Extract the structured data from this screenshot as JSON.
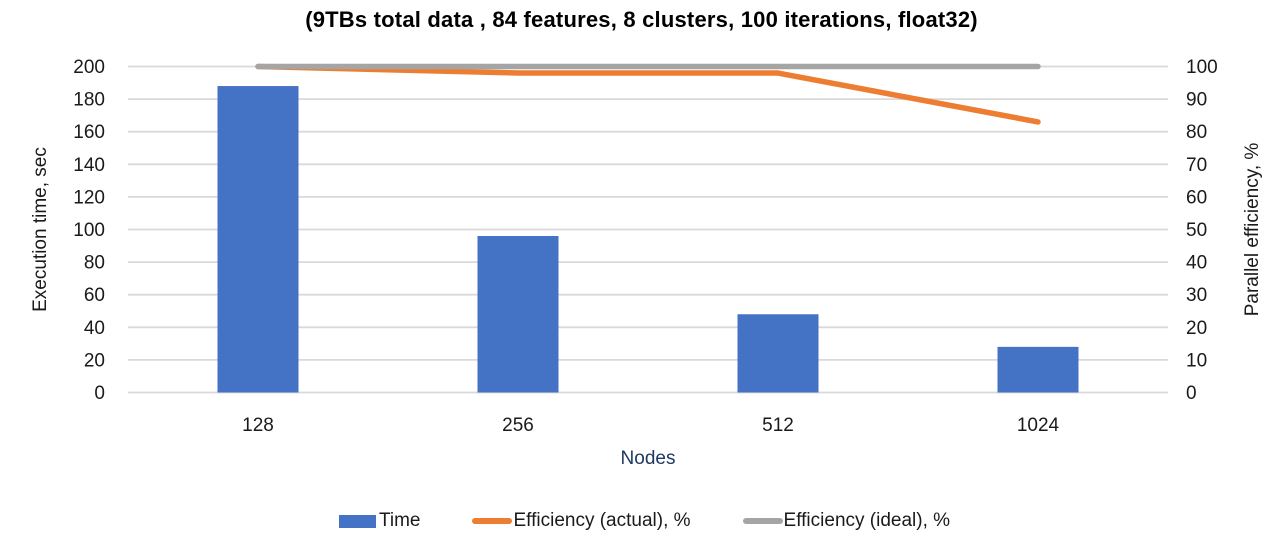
{
  "chart_data": {
    "type": "bar",
    "title": "(9TBs total data , 84 features, 8 clusters, 100 iterations, float32)",
    "categories": [
      "128",
      "256",
      "512",
      "1024"
    ],
    "xlabel": "Nodes",
    "axes": {
      "left": {
        "label": "Execution time, sec",
        "min": 0,
        "max": 200,
        "step": 20
      },
      "right": {
        "label": "Parallel efficiency, %",
        "min": 0,
        "max": 100,
        "step": 10
      }
    },
    "series": [
      {
        "name": "Time",
        "kind": "bar",
        "axis": "left",
        "color": "#4472C4",
        "values": [
          188,
          96,
          48,
          28
        ]
      },
      {
        "name": "Efficiency (actual), %",
        "kind": "line",
        "axis": "right",
        "color": "#ED7D31",
        "values": [
          100,
          98,
          98,
          83
        ]
      },
      {
        "name": "Efficiency (ideal), %",
        "kind": "line",
        "axis": "right",
        "color": "#A5A5A5",
        "values": [
          100,
          100,
          100,
          100
        ]
      }
    ],
    "grid": true,
    "legend_position": "bottom",
    "styles": {
      "gridline_color": "#D9D9D9",
      "tick_color": "#1a1a1a",
      "background": "#FFFFFF"
    }
  }
}
